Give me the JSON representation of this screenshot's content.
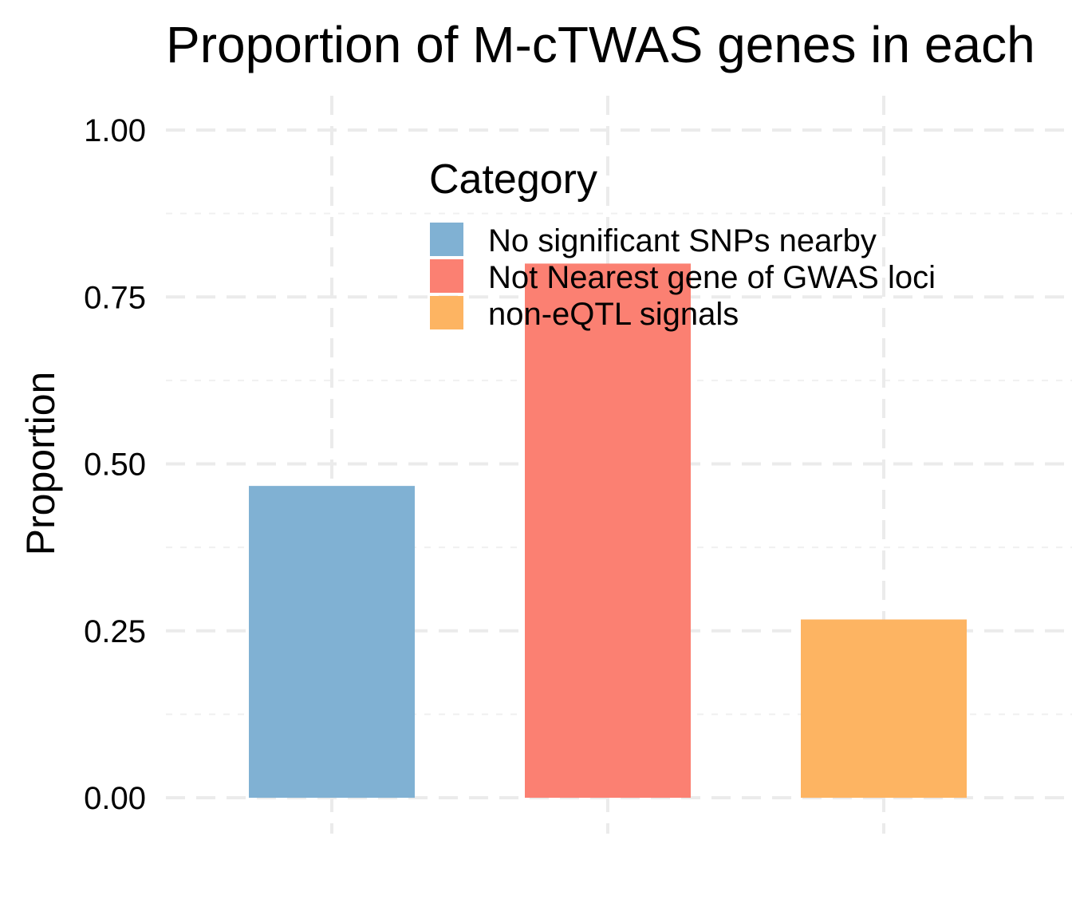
{
  "chart_data": {
    "type": "bar",
    "title": "Proportion of M-cTWAS genes in each",
    "xlabel": "",
    "ylabel": "Proportion",
    "ylim": [
      0,
      1
    ],
    "yticks": [
      "0.00",
      "0.25",
      "0.50",
      "0.75",
      "1.00"
    ],
    "ytick_values": [
      0,
      0.25,
      0.5,
      0.75,
      1.0
    ],
    "categories": [
      "No significant SNPs nearby",
      "Not Nearest gene of GWAS loci",
      "non-eQTL signals"
    ],
    "values": [
      0.467,
      0.8,
      0.267
    ],
    "colors": [
      "#80b1d3",
      "#fb8072",
      "#fdb462"
    ],
    "grid": true,
    "legend": {
      "title": "Category",
      "position": "top-right",
      "entries": [
        "No significant SNPs nearby",
        "Not Nearest gene of GWAS loci",
        "non-eQTL signals"
      ]
    }
  }
}
